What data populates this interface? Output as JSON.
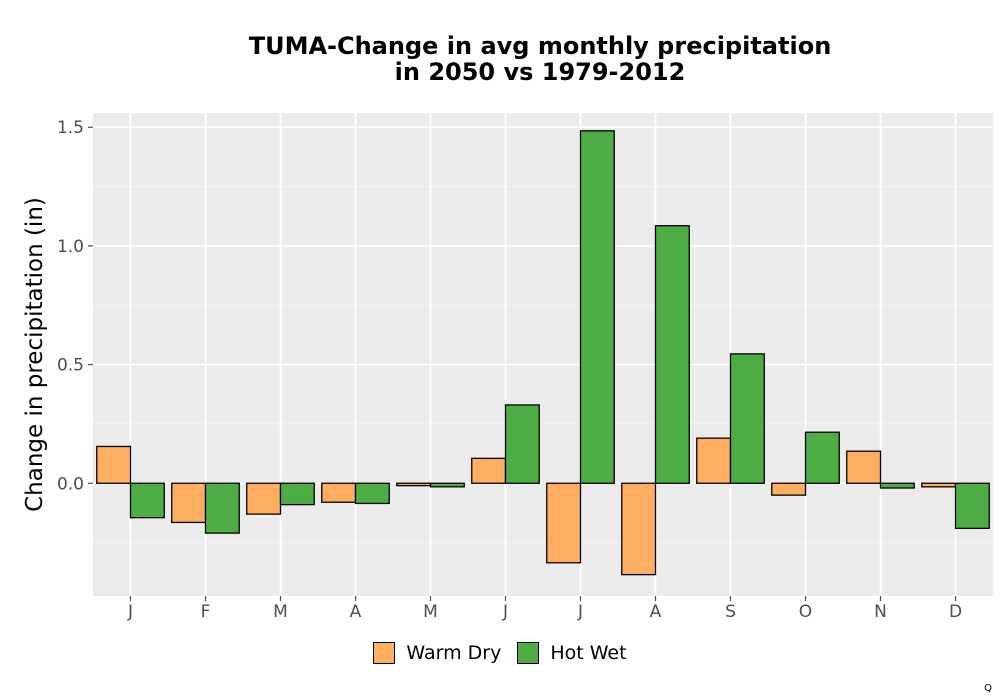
{
  "chart_data": {
    "type": "bar",
    "title": [
      "TUMA-Change in avg monthly precipitation",
      "in 2050 vs 1979-2012"
    ],
    "ylabel": "Change in precipitation (in)",
    "xlabel": "",
    "categories": [
      "J",
      "F",
      "M",
      "A",
      "M",
      "J",
      "J",
      "A",
      "S",
      "O",
      "N",
      "D"
    ],
    "series": [
      {
        "name": "Warm Dry",
        "color": "#FDAE61",
        "values": [
          0.155,
          -0.165,
          -0.13,
          -0.08,
          -0.01,
          0.105,
          -0.335,
          -0.385,
          0.19,
          -0.05,
          0.135,
          -0.015
        ]
      },
      {
        "name": "Hot Wet",
        "color": "#4DAC43",
        "values": [
          -0.145,
          -0.21,
          -0.09,
          -0.085,
          -0.015,
          0.33,
          1.485,
          1.085,
          0.545,
          0.215,
          -0.02,
          -0.19
        ]
      }
    ],
    "ylim": [
      -0.475,
      1.56
    ],
    "yticks": [
      0.0,
      0.5,
      1.0,
      1.5
    ],
    "yticklabels": [
      "0.0",
      "0.5",
      "1.0",
      "1.5"
    ],
    "grid": true,
    "legend_position": "bottom"
  },
  "corner_mark": "Q"
}
